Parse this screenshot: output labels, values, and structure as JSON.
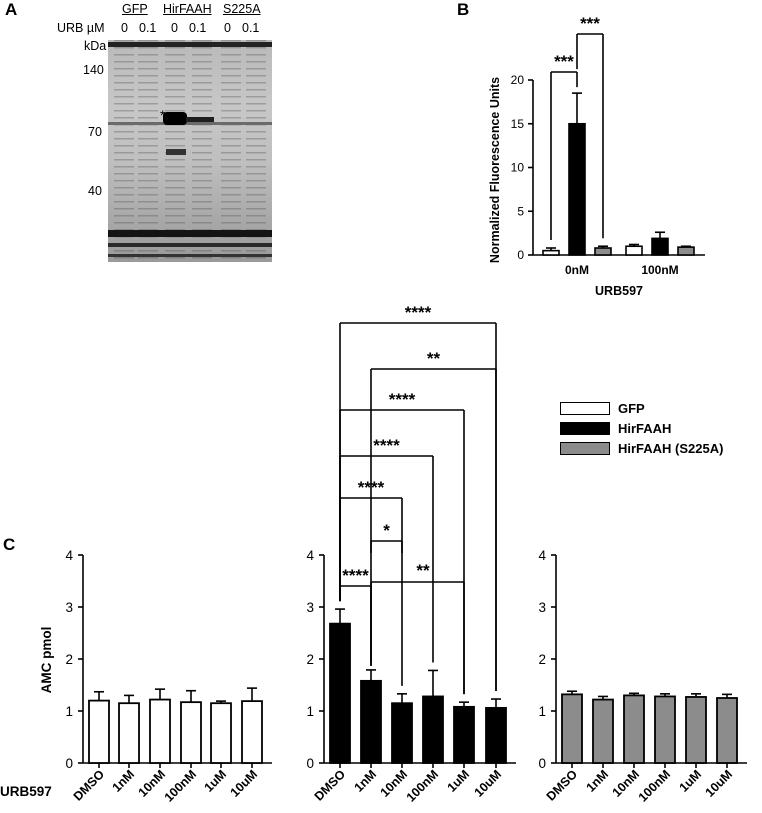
{
  "panels": {
    "a": "A",
    "b": "B",
    "c": "C"
  },
  "gel": {
    "urb_label": "URB µM",
    "kda_label": "kDa",
    "lane_groups": [
      "GFP",
      "HirFAAH",
      "S225A"
    ],
    "lane_doses": [
      "0",
      "0.1",
      "0",
      "0.1",
      "0",
      "0.1"
    ],
    "markers": [
      "140",
      "70",
      "40"
    ],
    "asterisk": "*"
  },
  "colors": {
    "gfp": "#ffffff",
    "hirfaah": "#000000",
    "s225a": "#8c8c8c"
  },
  "legend": [
    "GFP",
    "HirFAAH",
    "HirFAAH (S225A)"
  ],
  "chart_data": [
    {
      "id": "B",
      "type": "bar",
      "categories": [
        "0nM",
        "100nM"
      ],
      "xlabel": "URB597",
      "ylabel": "Normalized Fluorescence Units",
      "ylim": [
        0,
        20
      ],
      "yticks": [
        "0",
        "5",
        "10",
        "15",
        "20"
      ],
      "series": [
        {
          "name": "GFP",
          "values": [
            0.5,
            1.0
          ],
          "errors": [
            0.3,
            0.2
          ]
        },
        {
          "name": "HirFAAH",
          "values": [
            15.0,
            1.9
          ],
          "errors": [
            3.5,
            0.7
          ]
        },
        {
          "name": "HirFAAH (S225A)",
          "values": [
            0.8,
            0.9
          ],
          "errors": [
            0.2,
            0.1
          ]
        }
      ],
      "annotations": [
        {
          "from": "0nM/GFP",
          "to": "0nM/HirFAAH",
          "label": "***"
        },
        {
          "from": "0nM/HirFAAH",
          "to": "0nM/HirFAAH (S225A)",
          "label": "***"
        }
      ]
    },
    {
      "id": "C",
      "type": "bar",
      "groups": [
        "GFP",
        "HirFAAH",
        "HirFAAH (S225A)"
      ],
      "categories": [
        "DMSO",
        "1nM",
        "10nM",
        "100nM",
        "1uM",
        "10uM"
      ],
      "xlabel": "URB597",
      "ylabel": "AMC pmol",
      "ylim": [
        0,
        4
      ],
      "yticks": [
        "0",
        "1",
        "2",
        "3",
        "4"
      ],
      "series": [
        {
          "name": "GFP",
          "values": [
            1.2,
            1.15,
            1.22,
            1.17,
            1.15,
            1.19
          ],
          "errors": [
            0.17,
            0.15,
            0.2,
            0.22,
            0.04,
            0.25
          ]
        },
        {
          "name": "HirFAAH",
          "values": [
            2.68,
            1.58,
            1.15,
            1.28,
            1.08,
            1.06
          ],
          "errors": [
            0.28,
            0.21,
            0.18,
            0.5,
            0.09,
            0.17
          ]
        },
        {
          "name": "HirFAAH (S225A)",
          "values": [
            1.32,
            1.22,
            1.3,
            1.28,
            1.27,
            1.25
          ],
          "errors": [
            0.06,
            0.06,
            0.04,
            0.05,
            0.06,
            0.07
          ]
        }
      ],
      "annotations": [
        {
          "from": "DMSO",
          "to": "10uM",
          "label": "****"
        },
        {
          "from": "1nM",
          "to": "10uM",
          "label": "**"
        },
        {
          "from": "DMSO",
          "to": "1uM",
          "label": "****"
        },
        {
          "from": "DMSO",
          "to": "100nM",
          "label": "****"
        },
        {
          "from": "DMSO",
          "to": "10nM",
          "label": "****"
        },
        {
          "from": "1nM",
          "to": "10nM",
          "label": "*"
        },
        {
          "from": "DMSO",
          "to": "1nM",
          "label": "****"
        },
        {
          "from": "1nM",
          "to": "1uM",
          "label": "**"
        }
      ]
    }
  ]
}
